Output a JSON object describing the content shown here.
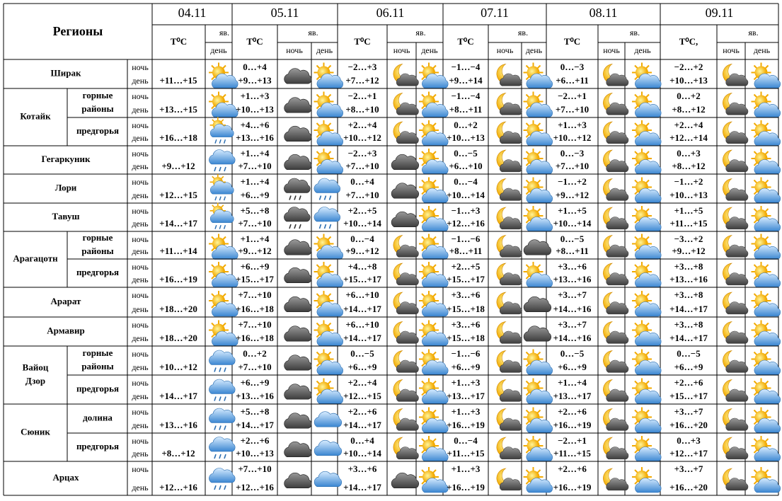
{
  "header": {
    "title": "Регионы",
    "dates": [
      "04.11",
      "05.11",
      "06.11",
      "07.11",
      "08.11",
      "09.11"
    ],
    "temp": "T⁰C",
    "temp_last": "T⁰C,",
    "icon_group": "яв.",
    "night": "ночь",
    "day": "день"
  },
  "regions": [
    {
      "name": [
        "Ширак"
      ],
      "rows": [
        {
          "d04": "+11…+15",
          "days": [
            [
              "0…+4",
              "+9…+13"
            ],
            [
              "−2…+3",
              "+7…+12"
            ],
            [
              "−1…−4",
              "+9…+14"
            ],
            [
              "0…−3",
              "+6…+11"
            ],
            [
              "−2…+2",
              "+10…+13"
            ]
          ]
        }
      ]
    },
    {
      "name": [
        "Котайк"
      ],
      "rows": [
        {
          "sub": [
            "горные",
            "районы"
          ],
          "d04": "+13…+15",
          "days": [
            [
              "+1…+3",
              "+10…+13"
            ],
            [
              "−2…+1",
              "+8…+10"
            ],
            [
              "−1…−4",
              "+8…+11"
            ],
            [
              "−2…+1",
              "+7…+10"
            ],
            [
              "0…+2",
              "+8…+12"
            ]
          ]
        },
        {
          "sub": [
            "предгорья"
          ],
          "d04": "+16…+18",
          "days": [
            [
              "+4…+6",
              "+13…+16"
            ],
            [
              "+2…+4",
              "+10…+12"
            ],
            [
              "0…+2",
              "+10…+13"
            ],
            [
              "+1…+3",
              "+10…+12"
            ],
            [
              "+2…+4",
              "+12…+14"
            ]
          ]
        }
      ]
    },
    {
      "name": [
        "Гегаркуник"
      ],
      "rows": [
        {
          "d04": "+9…+12",
          "days": [
            [
              "+1…+4",
              "+7…+10"
            ],
            [
              "−2…+3",
              "+7…+10"
            ],
            [
              "0…−5",
              "+6…+10"
            ],
            [
              "0…−3",
              "+7…+10"
            ],
            [
              "0…+3",
              "+8…+12"
            ]
          ]
        }
      ]
    },
    {
      "name": [
        "Лори"
      ],
      "rows": [
        {
          "d04": "+12…+15",
          "days": [
            [
              "+1…+4",
              "+6…+9"
            ],
            [
              "0…+4",
              "+7…+10"
            ],
            [
              "0…−4",
              "+10…+14"
            ],
            [
              "−1…+2",
              "+9…+12"
            ],
            [
              "−1…+2",
              "+10…+13"
            ]
          ]
        }
      ]
    },
    {
      "name": [
        "Тавуш"
      ],
      "rows": [
        {
          "d04": "+14…+17",
          "days": [
            [
              "+5…+8",
              "+7…+10"
            ],
            [
              "+2…+5",
              "+10…+14"
            ],
            [
              "−1…+3",
              "+12…+16"
            ],
            [
              "+1…+5",
              "+10…+14"
            ],
            [
              "+1…+5",
              "+11…+15"
            ]
          ]
        }
      ]
    },
    {
      "name": [
        "Арагацотн"
      ],
      "rows": [
        {
          "sub": [
            "горные",
            "районы"
          ],
          "d04": "+11…+14",
          "days": [
            [
              "+1…+4",
              "+9…+12"
            ],
            [
              "0…−4",
              "+9…+12"
            ],
            [
              "−1…−6",
              "+8…+11"
            ],
            [
              "0…−5",
              "+8…+11"
            ],
            [
              "−3…+2",
              "+9…+12"
            ]
          ]
        },
        {
          "sub": [
            "предгорья"
          ],
          "d04": "+16…+19",
          "days": [
            [
              "+6…+9",
              "+15…+17"
            ],
            [
              "+4…+8",
              "+15…+17"
            ],
            [
              "+2…+5",
              "+15…+17"
            ],
            [
              "+3…+6",
              "+13…+16"
            ],
            [
              "+3…+8",
              "+13…+16"
            ]
          ]
        }
      ]
    },
    {
      "name": [
        "Арарат"
      ],
      "rows": [
        {
          "d04": "+18…+20",
          "days": [
            [
              "+7…+10",
              "+16…+18"
            ],
            [
              "+6…+10",
              "+14…+17"
            ],
            [
              "+3…+6",
              "+15…+18"
            ],
            [
              "+3…+7",
              "+14…+16"
            ],
            [
              "+3…+8",
              "+14…+17"
            ]
          ]
        }
      ]
    },
    {
      "name": [
        "Армавир"
      ],
      "rows": [
        {
          "d04": "+18…+20",
          "days": [
            [
              "+7…+10",
              "+16…+18"
            ],
            [
              "+6…+10",
              "+14…+17"
            ],
            [
              "+3…+6",
              "+15…+18"
            ],
            [
              "+3…+7",
              "+14…+16"
            ],
            [
              "+3…+8",
              "+14…+17"
            ]
          ]
        }
      ]
    },
    {
      "name": [
        "Вайоц",
        "Дзор"
      ],
      "rows": [
        {
          "sub": [
            "горные",
            "районы"
          ],
          "d04": "+10…+12",
          "days": [
            [
              "0…+2",
              "+7…+10"
            ],
            [
              "0…−5",
              "+6…+9"
            ],
            [
              "−1…−6",
              "+6…+9"
            ],
            [
              "0…−5",
              "+6…+9"
            ],
            [
              "0…−5",
              "+6…+9"
            ]
          ]
        },
        {
          "sub": [
            "предгорья"
          ],
          "d04": "+14…+17",
          "days": [
            [
              "+6…+9",
              "+13…+16"
            ],
            [
              "+2…+4",
              "+12…+15"
            ],
            [
              "+1…+3",
              "+13…+17"
            ],
            [
              "+1…+4",
              "+13…+17"
            ],
            [
              "+2…+6",
              "+15…+17"
            ]
          ]
        }
      ]
    },
    {
      "name": [
        "Сюник"
      ],
      "rows": [
        {
          "sub": [
            "долина"
          ],
          "d04": "+13…+16",
          "days": [
            [
              "+5…+8",
              "+14…+17"
            ],
            [
              "+2…+6",
              "+14…+17"
            ],
            [
              "+1…+3",
              "+16…+19"
            ],
            [
              "+2…+6",
              "+16…+19"
            ],
            [
              "+3…+7",
              "+16…+20"
            ]
          ]
        },
        {
          "sub": [
            "предгорья"
          ],
          "d04": "+8…+12",
          "days": [
            [
              "+2…+6",
              "+10…+13"
            ],
            [
              "0…+4",
              "+10…+14"
            ],
            [
              "0…−4",
              "+11…+15"
            ],
            [
              "−2…+1",
              "+11…+15"
            ],
            [
              "0…+3",
              "+12…+17"
            ]
          ]
        }
      ]
    },
    {
      "name": [
        "Арцах"
      ],
      "rows": [
        {
          "d04": "+12…+16",
          "days": [
            [
              "+7…+10",
              "+12…+16"
            ],
            [
              "+3…+6",
              "+14…+17"
            ],
            [
              "+1…+3",
              "+16…+19"
            ],
            [
              "+2…+6",
              "+16…+19"
            ],
            [
              "+3…+7",
              "+16…+20"
            ]
          ]
        }
      ]
    }
  ]
}
